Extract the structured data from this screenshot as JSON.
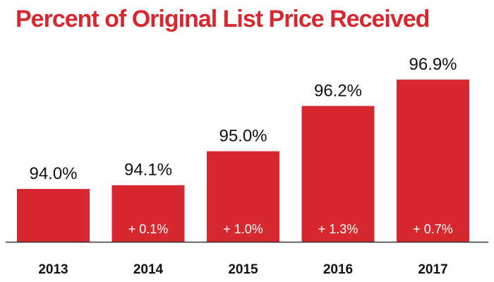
{
  "colors": {
    "accent": "#d7282f",
    "text": "#111111",
    "axis": "#333333",
    "change_text": "#ffffff"
  },
  "chart_data": {
    "type": "bar",
    "title": "Percent of Original List Price Received",
    "xlabel": "",
    "ylabel": "",
    "categories": [
      "2013",
      "2014",
      "2015",
      "2016",
      "2017"
    ],
    "values": [
      94.0,
      94.1,
      95.0,
      96.2,
      96.9
    ],
    "value_labels": [
      "94.0%",
      "94.1%",
      "95.0%",
      "96.2%",
      "96.9%"
    ],
    "change_labels": [
      "",
      "+ 0.1%",
      "+ 1.0%",
      "+ 1.3%",
      "+ 0.7%"
    ],
    "ylim": [
      92.6,
      97.7
    ],
    "grid": false,
    "legend": "none"
  }
}
